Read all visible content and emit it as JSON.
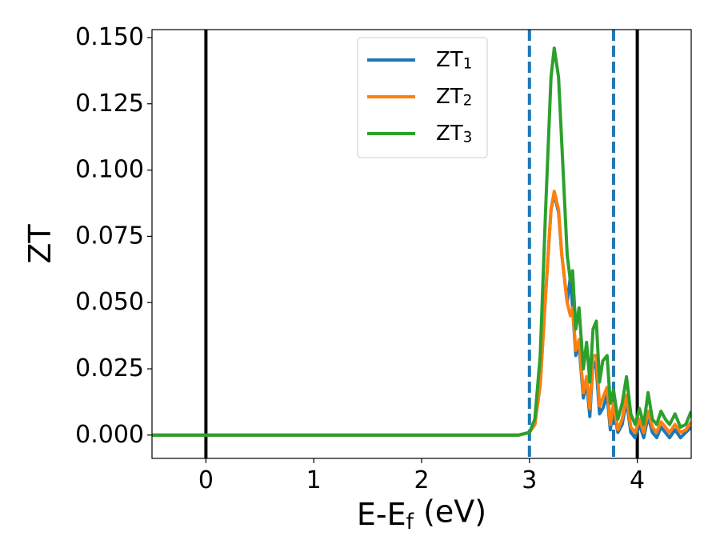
{
  "chart_data": {
    "type": "line",
    "x_label": "E-E_f (eV)",
    "y_label": "ZT",
    "x": [
      -0.5,
      0,
      0.5,
      1,
      1.5,
      2,
      2.5,
      2.9,
      3.0,
      3.05,
      3.1,
      3.15,
      3.2,
      3.23,
      3.27,
      3.3,
      3.35,
      3.38,
      3.4,
      3.43,
      3.46,
      3.5,
      3.53,
      3.56,
      3.59,
      3.62,
      3.65,
      3.68,
      3.72,
      3.75,
      3.78,
      3.82,
      3.86,
      3.9,
      3.94,
      3.98,
      4.02,
      4.06,
      4.1,
      4.14,
      4.18,
      4.22,
      4.26,
      4.3,
      4.35,
      4.4,
      4.45,
      4.5
    ],
    "series": [
      {
        "name": "ZT_1",
        "color": "#1f77b4",
        "values": [
          0,
          0,
          0,
          0,
          0,
          0,
          0,
          0,
          0.001,
          0.004,
          0.019,
          0.053,
          0.085,
          0.091,
          0.084,
          0.068,
          0.05,
          0.06,
          0.048,
          0.03,
          0.034,
          0.014,
          0.02,
          0.007,
          0.028,
          0.025,
          0.008,
          0.01,
          0.015,
          0.002,
          0.01,
          0.001,
          0.004,
          0.013,
          0.001,
          -0.001,
          0.004,
          -0.001,
          0.007,
          0.001,
          -0.001,
          0.003,
          0.001,
          -0.001,
          0.002,
          -0.001,
          0.001,
          0.003
        ]
      },
      {
        "name": "ZT_2",
        "color": "#ff7f0e",
        "values": [
          0,
          0,
          0,
          0,
          0,
          0,
          0,
          0,
          0.001,
          0.004,
          0.019,
          0.053,
          0.085,
          0.092,
          0.085,
          0.068,
          0.05,
          0.045,
          0.048,
          0.032,
          0.036,
          0.016,
          0.022,
          0.01,
          0.03,
          0.03,
          0.011,
          0.014,
          0.018,
          0.004,
          0.012,
          0.002,
          0.006,
          0.015,
          0.003,
          0.001,
          0.006,
          0.001,
          0.009,
          0.003,
          0.001,
          0.005,
          0.003,
          0.001,
          0.004,
          0.001,
          0.002,
          0.005
        ]
      },
      {
        "name": "ZT_3",
        "color": "#2ca02c",
        "values": [
          0,
          0,
          0,
          0,
          0,
          0,
          0,
          0,
          0.001,
          0.006,
          0.03,
          0.085,
          0.135,
          0.146,
          0.135,
          0.11,
          0.068,
          0.058,
          0.062,
          0.04,
          0.048,
          0.025,
          0.035,
          0.02,
          0.04,
          0.043,
          0.02,
          0.028,
          0.03,
          0.012,
          0.017,
          0.006,
          0.012,
          0.022,
          0.008,
          0.004,
          0.01,
          0.004,
          0.016,
          0.006,
          0.004,
          0.009,
          0.006,
          0.004,
          0.008,
          0.003,
          0.004,
          0.009
        ]
      }
    ],
    "vlines": [
      {
        "x": 0,
        "color": "#000000",
        "dashed": false
      },
      {
        "x": 4,
        "color": "#000000",
        "dashed": false
      },
      {
        "x": 3.0,
        "color": "#1f77b4",
        "dashed": true
      },
      {
        "x": 3.78,
        "color": "#1f77b4",
        "dashed": true
      }
    ],
    "xlim": [
      -0.5,
      4.5
    ],
    "ylim": [
      -0.0088,
      0.153
    ],
    "xticks": [
      0,
      1,
      2,
      3,
      4
    ],
    "yticks": [
      {
        "value": 0,
        "label": "0.000"
      },
      {
        "value": 0.025,
        "label": "0.025"
      },
      {
        "value": 0.05,
        "label": "0.050"
      },
      {
        "value": 0.075,
        "label": "0.075"
      },
      {
        "value": 0.1,
        "label": "0.100"
      },
      {
        "value": 0.125,
        "label": "0.125"
      },
      {
        "value": 0.15,
        "label": "0.150"
      }
    ],
    "legend": "upper center",
    "grid": false
  }
}
